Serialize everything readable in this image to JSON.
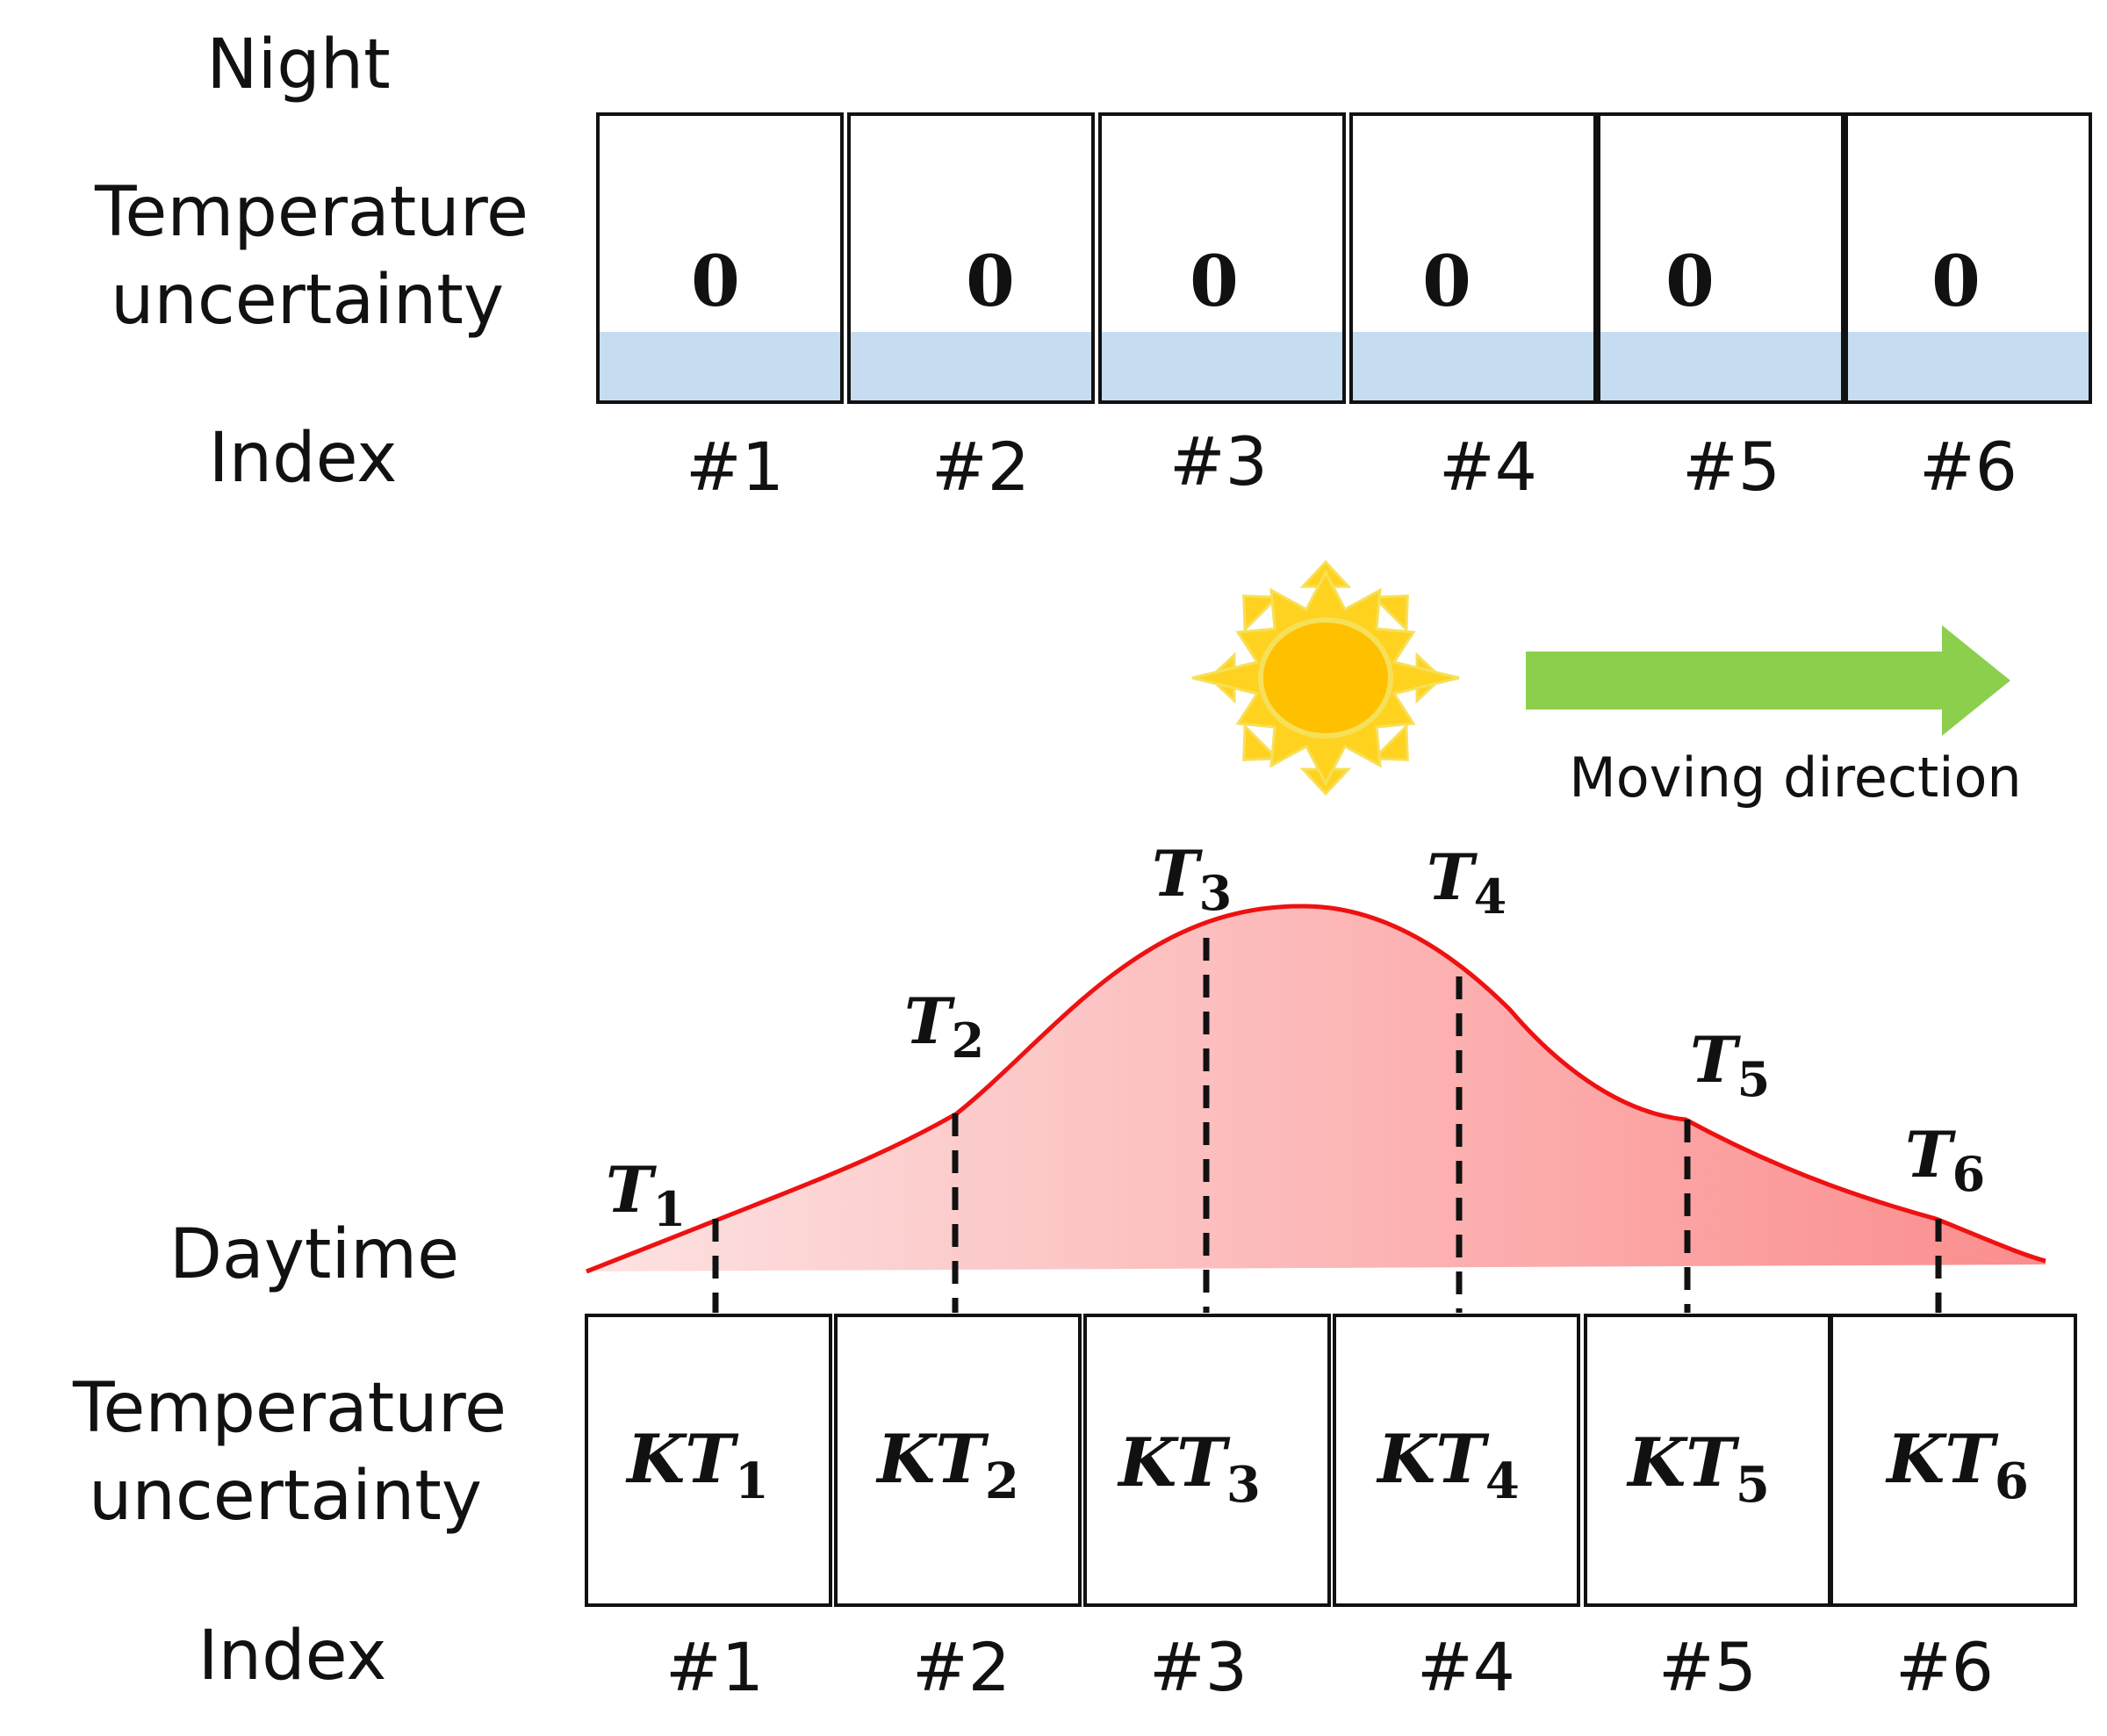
{
  "night": {
    "title": "Night",
    "row_label_line1": "Temperature",
    "row_label_line2": "uncertainty",
    "index_label": "Index",
    "cells": [
      {
        "value": "0",
        "index": "#1"
      },
      {
        "value": "0",
        "index": "#2"
      },
      {
        "value": "0",
        "index": "#3"
      },
      {
        "value": "0",
        "index": "#4"
      },
      {
        "value": "0",
        "index": "#5"
      },
      {
        "value": "0",
        "index": "#6"
      }
    ]
  },
  "sun_icon": "sun-icon",
  "direction": {
    "label": "Moving direction",
    "arrow_icon": "right-arrow-icon"
  },
  "daytime": {
    "title": "Daytime",
    "row_label_line1": "Temperature",
    "row_label_line2": "uncertainty",
    "index_label": "Index",
    "curve_labels": [
      {
        "main": "T",
        "sub": "1"
      },
      {
        "main": "T",
        "sub": "2"
      },
      {
        "main": "T",
        "sub": "3"
      },
      {
        "main": "T",
        "sub": "4"
      },
      {
        "main": "T",
        "sub": "5"
      },
      {
        "main": "T",
        "sub": "6"
      }
    ],
    "cells": [
      {
        "main": "KT",
        "sub": "1",
        "index": "#1"
      },
      {
        "main": "KT",
        "sub": "2",
        "index": "#2"
      },
      {
        "main": "KT",
        "sub": "3",
        "index": "#3"
      },
      {
        "main": "KT",
        "sub": "4",
        "index": "#4"
      },
      {
        "main": "KT",
        "sub": "5",
        "index": "#5"
      },
      {
        "main": "KT",
        "sub": "6",
        "index": "#6"
      }
    ]
  },
  "colors": {
    "night_band": "#c6dcf0",
    "curve_line": "#ee1111",
    "curve_fill_light": "#fde2e2",
    "curve_fill_dark": "#fb8d8d",
    "sun_body": "#ffc000",
    "sun_rays": "#ffd21f",
    "sun_outline": "#f6e05a",
    "arrow": "#8ccf4c"
  }
}
